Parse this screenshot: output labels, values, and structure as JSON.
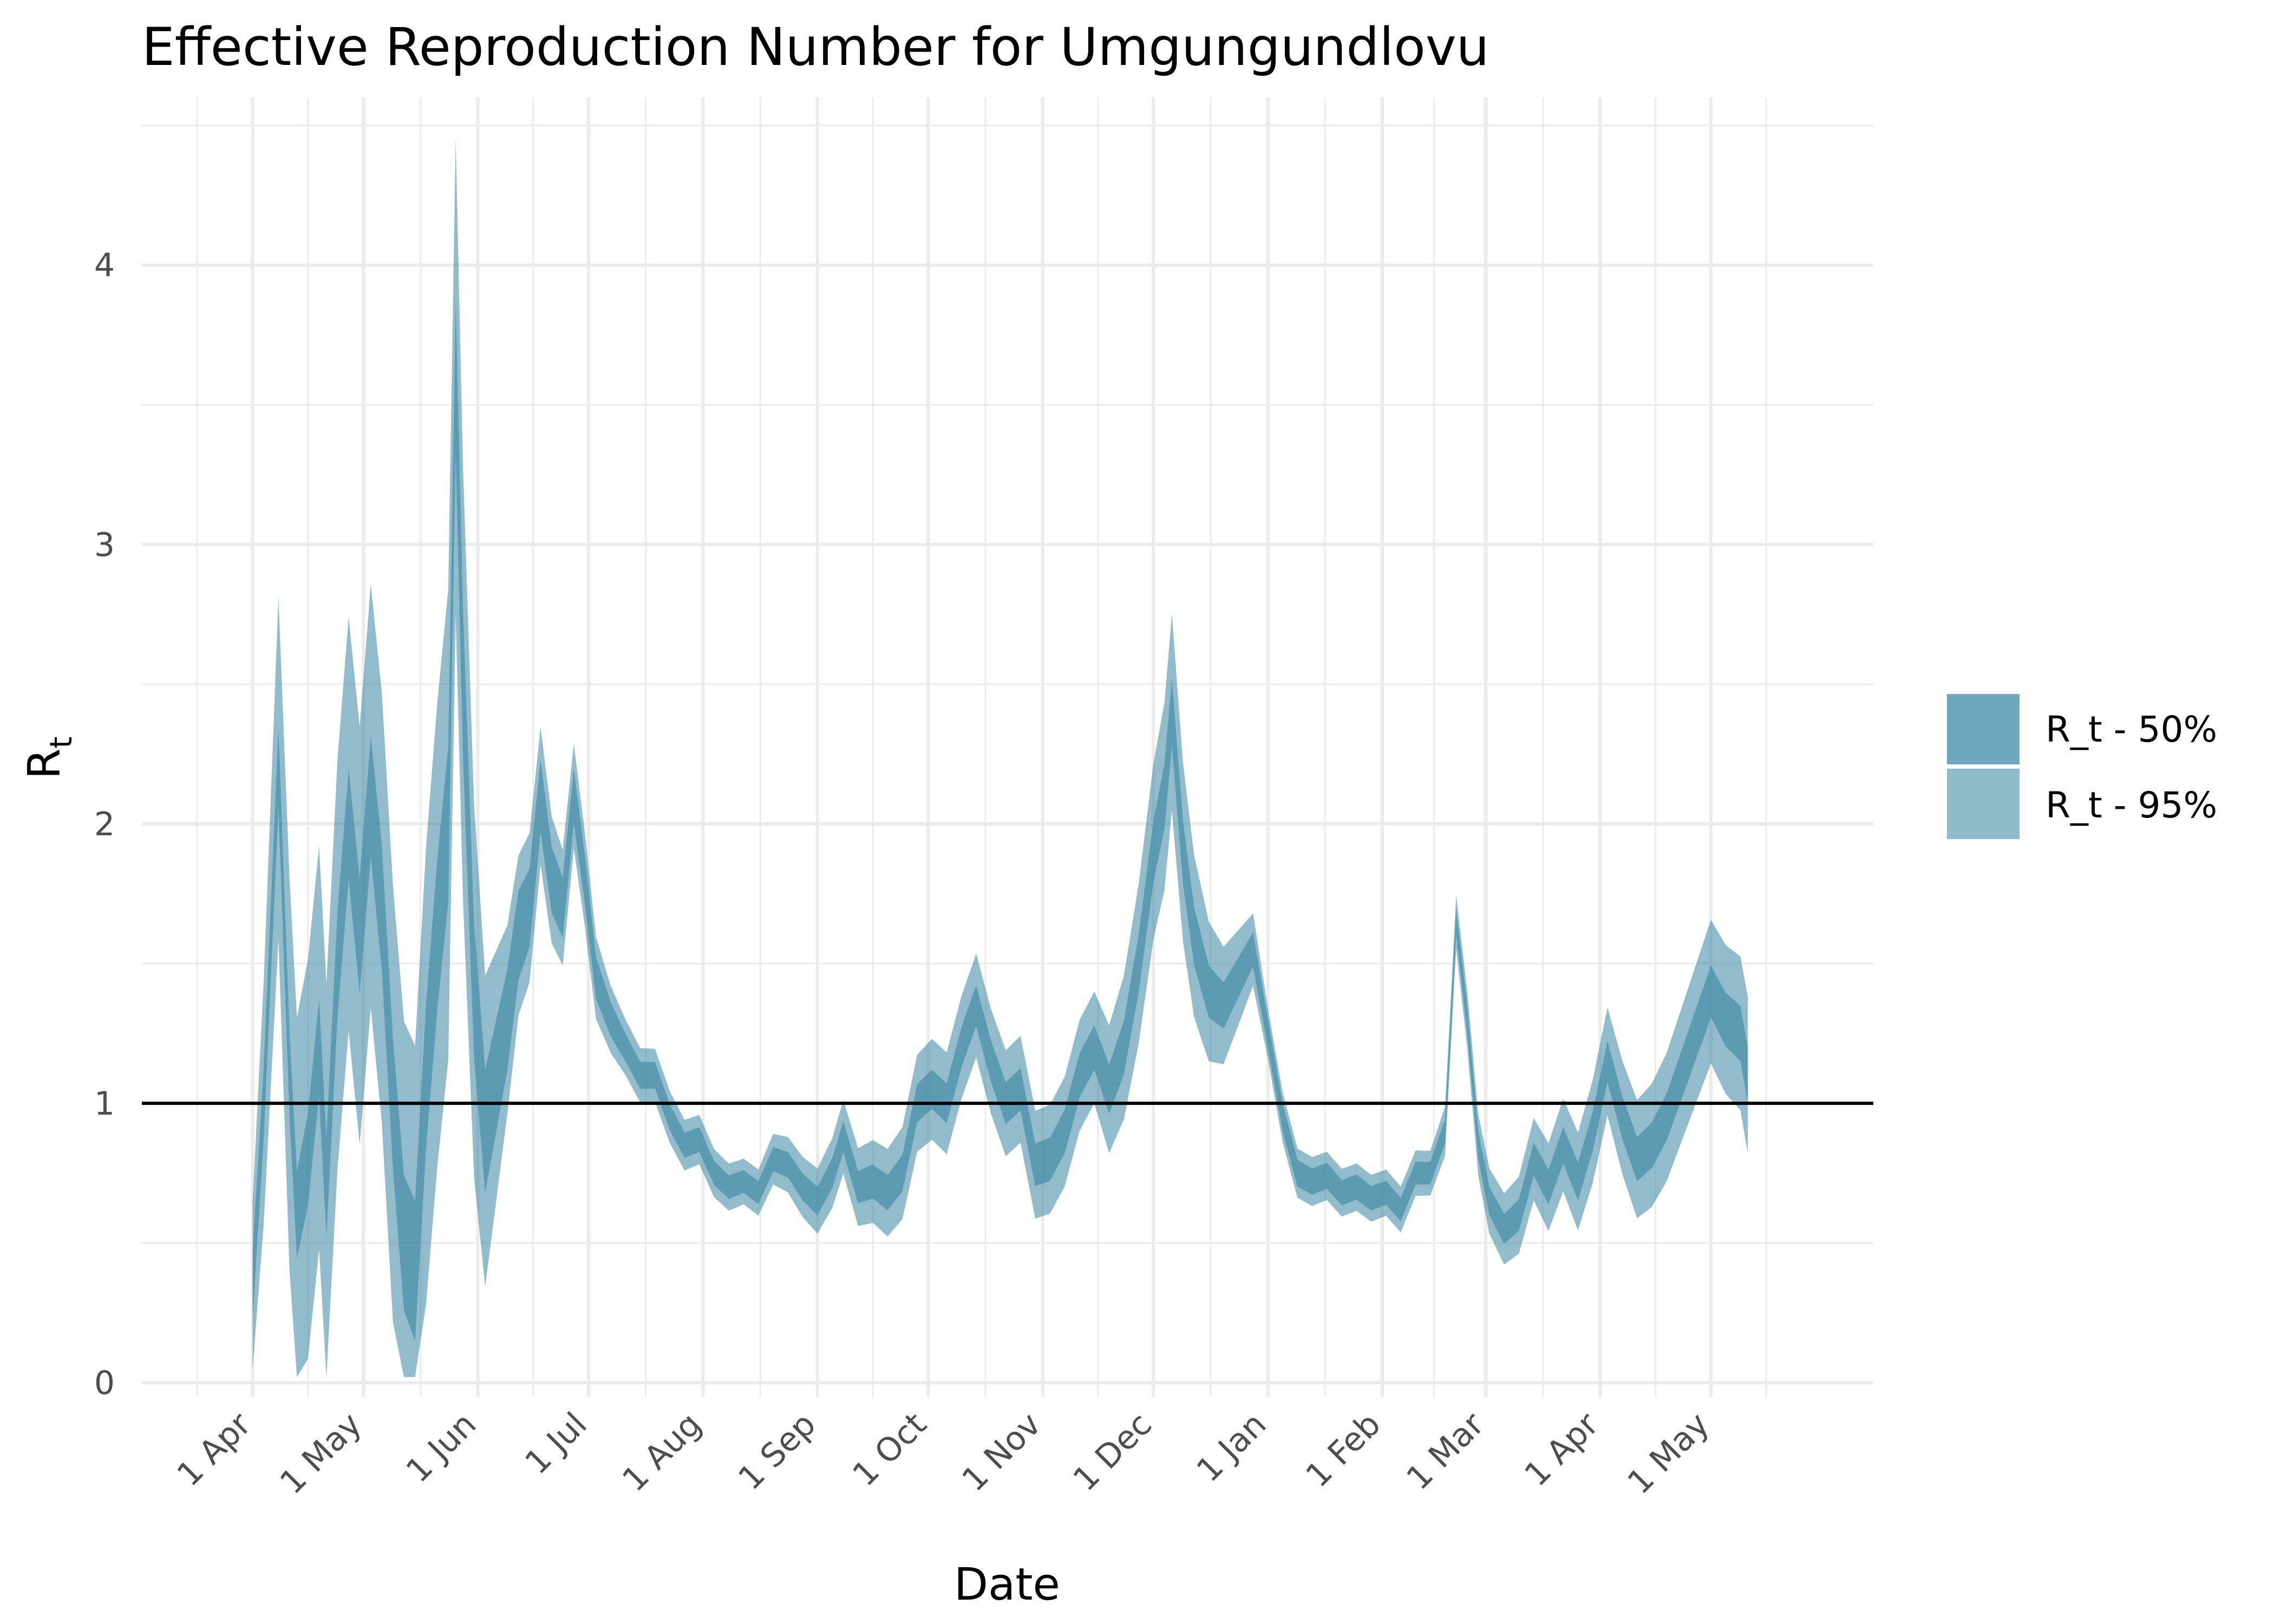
{
  "chart_data": {
    "type": "area",
    "title": "Effective Reproduction Number for Umgungundlovu",
    "xlabel": "Date",
    "ylabel": "R",
    "ylabel_subscript": "t",
    "ylim": [
      -0.05,
      4.6
    ],
    "xlim": [
      "2020-03-02",
      "2021-06-14"
    ],
    "grid": true,
    "legend_position": "right",
    "reference_line": 1,
    "x_ticks": [
      {
        "date": "2020-04-01",
        "label": "1 Apr"
      },
      {
        "date": "2020-05-01",
        "label": "1 May"
      },
      {
        "date": "2020-06-01",
        "label": "1 Jun"
      },
      {
        "date": "2020-07-01",
        "label": "1 Jul"
      },
      {
        "date": "2020-08-01",
        "label": "1 Aug"
      },
      {
        "date": "2020-09-01",
        "label": "1 Sep"
      },
      {
        "date": "2020-10-01",
        "label": "1 Oct"
      },
      {
        "date": "2020-11-01",
        "label": "1 Nov"
      },
      {
        "date": "2020-12-01",
        "label": "1 Dec"
      },
      {
        "date": "2021-01-01",
        "label": "1 Jan"
      },
      {
        "date": "2021-02-01",
        "label": "1 Feb"
      },
      {
        "date": "2021-03-01",
        "label": "1 Mar"
      },
      {
        "date": "2021-04-01",
        "label": "1 Apr"
      },
      {
        "date": "2021-05-01",
        "label": "1 May"
      }
    ],
    "y_ticks": [
      0,
      1,
      2,
      3,
      4
    ],
    "colors": {
      "band50": "#4a90a8",
      "band95": "#4a90a8",
      "grid": "#ebebeb",
      "reference_line": "#000000",
      "legend50": "#6fa8bc",
      "legend95": "#8ebcca"
    },
    "series": [
      {
        "name": "R_t - 50%",
        "role": "band50"
      },
      {
        "name": "R_t - 95%",
        "role": "band95"
      }
    ],
    "median_points": [
      [
        "2020-04-01",
        0.35
      ],
      [
        "2020-04-04",
        1.0
      ],
      [
        "2020-04-08",
        2.2
      ],
      [
        "2020-04-11",
        1.1
      ],
      [
        "2020-04-13",
        0.6
      ],
      [
        "2020-04-16",
        0.8
      ],
      [
        "2020-04-19",
        1.2
      ],
      [
        "2020-04-21",
        0.7
      ],
      [
        "2020-04-24",
        1.5
      ],
      [
        "2020-04-27",
        2.0
      ],
      [
        "2020-04-30",
        1.6
      ],
      [
        "2020-05-03",
        2.1
      ],
      [
        "2020-05-06",
        1.7
      ],
      [
        "2020-05-09",
        1.0
      ],
      [
        "2020-05-12",
        0.5
      ],
      [
        "2020-05-15",
        0.4
      ],
      [
        "2020-05-18",
        1.1
      ],
      [
        "2020-05-21",
        1.6
      ],
      [
        "2020-05-24",
        2.0
      ],
      [
        "2020-05-26",
        3.6
      ],
      [
        "2020-05-28",
        2.5
      ],
      [
        "2020-05-31",
        1.4
      ],
      [
        "2020-06-03",
        0.9
      ],
      [
        "2020-06-06",
        1.1
      ],
      [
        "2020-06-09",
        1.3
      ],
      [
        "2020-06-12",
        1.6
      ],
      [
        "2020-06-15",
        1.7
      ],
      [
        "2020-06-18",
        2.1
      ],
      [
        "2020-06-21",
        1.8
      ],
      [
        "2020-06-24",
        1.7
      ],
      [
        "2020-06-27",
        2.1
      ],
      [
        "2020-06-30",
        1.8
      ],
      [
        "2020-07-03",
        1.45
      ],
      [
        "2020-07-07",
        1.3
      ],
      [
        "2020-07-11",
        1.2
      ],
      [
        "2020-07-15",
        1.1
      ],
      [
        "2020-07-19",
        1.1
      ],
      [
        "2020-07-23",
        0.95
      ],
      [
        "2020-07-27",
        0.85
      ],
      [
        "2020-07-31",
        0.87
      ],
      [
        "2020-08-04",
        0.75
      ],
      [
        "2020-08-08",
        0.7
      ],
      [
        "2020-08-12",
        0.72
      ],
      [
        "2020-08-16",
        0.68
      ],
      [
        "2020-08-20",
        0.8
      ],
      [
        "2020-08-24",
        0.78
      ],
      [
        "2020-08-28",
        0.7
      ],
      [
        "2020-09-01",
        0.65
      ],
      [
        "2020-09-05",
        0.75
      ],
      [
        "2020-09-08",
        0.88
      ],
      [
        "2020-09-12",
        0.7
      ],
      [
        "2020-09-16",
        0.72
      ],
      [
        "2020-09-20",
        0.68
      ],
      [
        "2020-09-24",
        0.75
      ],
      [
        "2020-09-28",
        1.0
      ],
      [
        "2020-10-02",
        1.05
      ],
      [
        "2020-10-06",
        1.0
      ],
      [
        "2020-10-10",
        1.2
      ],
      [
        "2020-10-14",
        1.35
      ],
      [
        "2020-10-18",
        1.15
      ],
      [
        "2020-10-22",
        1.0
      ],
      [
        "2020-10-26",
        1.05
      ],
      [
        "2020-10-30",
        0.78
      ],
      [
        "2020-11-03",
        0.8
      ],
      [
        "2020-11-07",
        0.9
      ],
      [
        "2020-11-11",
        1.1
      ],
      [
        "2020-11-15",
        1.2
      ],
      [
        "2020-11-19",
        1.05
      ],
      [
        "2020-11-23",
        1.2
      ],
      [
        "2020-11-27",
        1.5
      ],
      [
        "2020-12-01",
        1.9
      ],
      [
        "2020-12-04",
        2.1
      ],
      [
        "2020-12-06",
        2.4
      ],
      [
        "2020-12-09",
        1.9
      ],
      [
        "2020-12-12",
        1.6
      ],
      [
        "2020-12-16",
        1.4
      ],
      [
        "2020-12-20",
        1.35
      ],
      [
        "2020-12-24",
        1.45
      ],
      [
        "2020-12-28",
        1.55
      ],
      [
        "2021-01-01",
        1.25
      ],
      [
        "2021-01-05",
        0.95
      ],
      [
        "2021-01-09",
        0.75
      ],
      [
        "2021-01-13",
        0.72
      ],
      [
        "2021-01-17",
        0.74
      ],
      [
        "2021-01-21",
        0.68
      ],
      [
        "2021-01-25",
        0.7
      ],
      [
        "2021-01-29",
        0.66
      ],
      [
        "2021-02-02",
        0.68
      ],
      [
        "2021-02-06",
        0.62
      ],
      [
        "2021-02-10",
        0.75
      ],
      [
        "2021-02-14",
        0.75
      ],
      [
        "2021-02-18",
        0.9
      ],
      [
        "2021-02-21",
        1.65
      ],
      [
        "2021-02-24",
        1.3
      ],
      [
        "2021-02-27",
        0.85
      ],
      [
        "2021-03-02",
        0.65
      ],
      [
        "2021-03-06",
        0.55
      ],
      [
        "2021-03-10",
        0.6
      ],
      [
        "2021-03-14",
        0.8
      ],
      [
        "2021-03-18",
        0.7
      ],
      [
        "2021-03-22",
        0.85
      ],
      [
        "2021-03-26",
        0.72
      ],
      [
        "2021-03-30",
        0.9
      ],
      [
        "2021-04-03",
        1.15
      ],
      [
        "2021-04-07",
        0.95
      ],
      [
        "2021-04-11",
        0.8
      ],
      [
        "2021-04-15",
        0.85
      ],
      [
        "2021-04-19",
        0.95
      ],
      [
        "2021-04-23",
        1.1
      ],
      [
        "2021-04-27",
        1.25
      ],
      [
        "2021-05-01",
        1.4
      ],
      [
        "2021-05-05",
        1.3
      ],
      [
        "2021-05-09",
        1.25
      ],
      [
        "2021-05-11",
        1.1
      ]
    ],
    "band50_halfwidth": [
      [
        "2020-04-01",
        0.12
      ],
      [
        "2020-05-25",
        0.28
      ],
      [
        "2020-06-15",
        0.14
      ],
      [
        "2020-07-10",
        0.05
      ],
      [
        "2020-08-15",
        0.04
      ],
      [
        "2020-10-01",
        0.07
      ],
      [
        "2020-11-15",
        0.08
      ],
      [
        "2020-12-06",
        0.12
      ],
      [
        "2021-01-01",
        0.05
      ],
      [
        "2021-02-15",
        0.04
      ],
      [
        "2021-03-15",
        0.06
      ],
      [
        "2021-05-11",
        0.1
      ]
    ],
    "band95_halfwidth": [
      [
        "2020-04-01",
        0.3
      ],
      [
        "2020-04-10",
        0.7
      ],
      [
        "2020-05-01",
        0.75
      ],
      [
        "2020-05-26",
        0.85
      ],
      [
        "2020-06-10",
        0.3
      ],
      [
        "2020-07-10",
        0.1
      ],
      [
        "2020-08-15",
        0.08
      ],
      [
        "2020-10-01",
        0.18
      ],
      [
        "2020-11-15",
        0.2
      ],
      [
        "2020-12-06",
        0.35
      ],
      [
        "2021-01-01",
        0.09
      ],
      [
        "2021-02-15",
        0.08
      ],
      [
        "2021-03-15",
        0.15
      ],
      [
        "2021-05-11",
        0.28
      ]
    ]
  }
}
